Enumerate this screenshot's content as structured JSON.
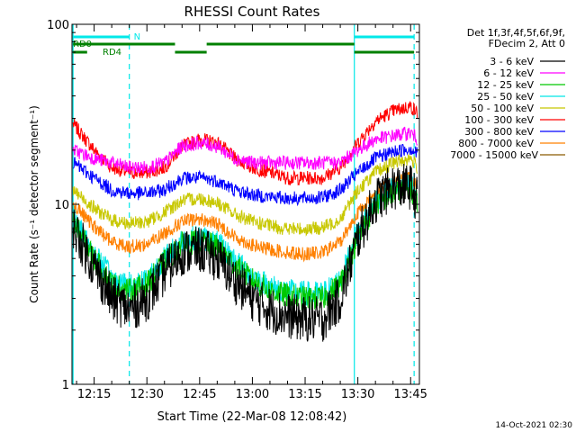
{
  "chart_data": {
    "type": "line",
    "title": "RHESSI Count Rates",
    "xlabel": "Start Time (22-Mar-08 12:08:42)",
    "ylabel": "Count Rate (s⁻¹ detector segment⁻¹)",
    "yscale": "log",
    "ylim": [
      1,
      100
    ],
    "xlim": [
      "12:08:42",
      "13:47:30"
    ],
    "x_ticks": [
      "12:15",
      "12:30",
      "12:45",
      "13:00",
      "13:15",
      "13:30",
      "13:45"
    ],
    "y_ticks": [
      "1",
      "10",
      "100"
    ],
    "timestamp": "14-Oct-2021 02:30",
    "legend_header": [
      "Det 1f,3f,4f,5f,6f,9f,",
      "FDecim 2, Att 0"
    ],
    "legend_position": "outside-right",
    "markers": {
      "night_label": "N",
      "decim_labels": [
        "RD0",
        "RD4"
      ],
      "solid_vertical_times": [
        "12:09:00",
        "13:29:00"
      ],
      "dashed_vertical_times": [
        "12:25:00",
        "13:46:00"
      ]
    },
    "x_sample_times": [
      "12:09",
      "12:15",
      "12:20",
      "12:25",
      "12:30",
      "12:35",
      "12:40",
      "12:45",
      "12:50",
      "12:55",
      "13:00",
      "13:05",
      "13:10",
      "13:15",
      "13:20",
      "13:25",
      "13:30",
      "13:35",
      "13:40",
      "13:45",
      "13:47"
    ],
    "series": [
      {
        "name": "3 - 6 keV",
        "color": "#000000",
        "values": [
          7.5,
          4.5,
          3.0,
          2.6,
          3.0,
          4.2,
          5.4,
          5.6,
          5.0,
          3.8,
          3.0,
          2.6,
          2.4,
          2.3,
          2.3,
          3.0,
          6.5,
          10.5,
          12.5,
          12.5,
          10.5
        ]
      },
      {
        "name": "6 - 12 keV",
        "color": "#ff00ff",
        "values": [
          20,
          18,
          17,
          16,
          16,
          17,
          21,
          22,
          21,
          18,
          17,
          17,
          17,
          17,
          17,
          17,
          20,
          23,
          24,
          25,
          23
        ]
      },
      {
        "name": "12 - 25 keV",
        "color": "#00c800",
        "values": [
          8.0,
          5.0,
          3.6,
          3.3,
          3.6,
          4.8,
          6.0,
          6.2,
          5.8,
          4.6,
          3.8,
          3.3,
          3.1,
          3.0,
          3.0,
          3.6,
          6.5,
          10.0,
          11.5,
          12.0,
          10.5
        ]
      },
      {
        "name": "25 - 50 keV",
        "color": "#00e8e8",
        "values": [
          8.5,
          5.4,
          3.9,
          3.5,
          3.9,
          5.0,
          6.3,
          6.6,
          6.1,
          4.9,
          4.0,
          3.5,
          3.3,
          3.2,
          3.2,
          3.8,
          7.0,
          10.5,
          12.5,
          12.8,
          11.0
        ]
      },
      {
        "name": "50 - 100 keV",
        "color": "#c8c800",
        "values": [
          12,
          9.5,
          8.2,
          7.8,
          8.0,
          9.0,
          10.5,
          10.8,
          10.2,
          8.8,
          8.0,
          7.6,
          7.3,
          7.3,
          7.4,
          8.3,
          12,
          15,
          17,
          18,
          16
        ]
      },
      {
        "name": "100 - 300 keV",
        "color": "#ff0000",
        "values": [
          28,
          20,
          16,
          15,
          15,
          16,
          21,
          23,
          22,
          18,
          16,
          15,
          14,
          14,
          14,
          16,
          22,
          29,
          33,
          35,
          32
        ]
      },
      {
        "name": "300 - 800 keV",
        "color": "#0000ff",
        "values": [
          17,
          14,
          12,
          11.5,
          11.5,
          12,
          14,
          14,
          13.5,
          12,
          11.3,
          11,
          10.8,
          10.8,
          10.9,
          12,
          15,
          18,
          19.5,
          20.5,
          19
        ]
      },
      {
        "name": "800 - 7000 keV",
        "color": "#ff8000",
        "values": [
          10,
          7.5,
          6.2,
          5.8,
          6.0,
          6.9,
          8.0,
          8.3,
          7.8,
          6.6,
          5.9,
          5.6,
          5.4,
          5.3,
          5.4,
          6.2,
          9.0,
          11.5,
          13.5,
          14,
          12.5
        ]
      },
      {
        "name": "7000 - 15000 keV",
        "color": "#8b5a00",
        "values": []
      }
    ]
  }
}
